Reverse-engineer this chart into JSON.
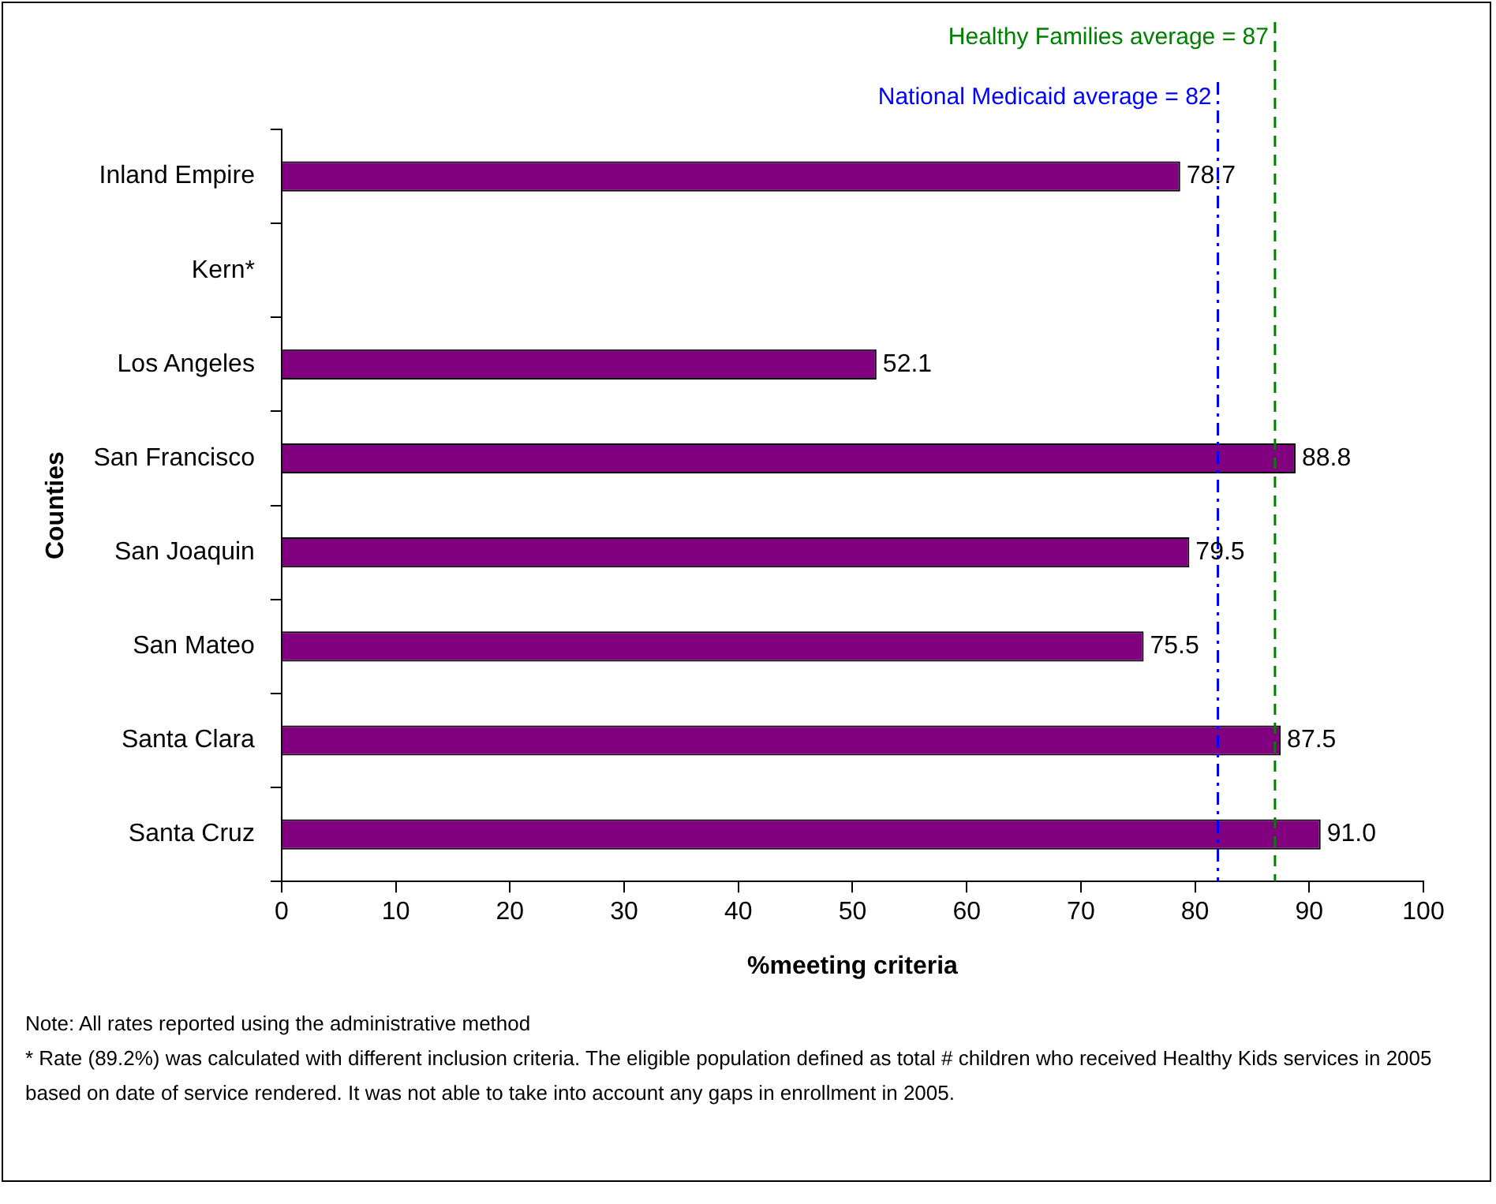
{
  "chart_data": {
    "type": "bar",
    "orientation": "horizontal",
    "xlabel": "%meeting criteria",
    "ylabel": "Counties",
    "categories": [
      "Inland Empire",
      "Kern*",
      "Los Angeles",
      "San Francisco",
      "San Joaquin",
      "San Mateo",
      "Santa Clara",
      "Santa Cruz"
    ],
    "values": [
      78.7,
      null,
      52.1,
      88.8,
      79.5,
      75.5,
      87.5,
      91.0
    ],
    "value_labels": [
      "78.7",
      null,
      "52.1",
      "88.8",
      "79.5",
      "75.5",
      "87.5",
      "91.0"
    ],
    "color": "#800080",
    "xlim": [
      0,
      100
    ],
    "xticks": [
      0,
      10,
      20,
      30,
      40,
      50,
      60,
      70,
      80,
      90,
      100
    ],
    "ref_lines": [
      {
        "axis": "x",
        "value": 82,
        "label": "National Medicaid average = 82",
        "color": "#0000ff",
        "line_style": "dashdot"
      },
      {
        "axis": "x",
        "value": 87,
        "label": "Healthy Families average = 87",
        "color": "#008000",
        "line_style": "dashed"
      }
    ],
    "legend": false,
    "annotations": [
      "Note: All rates reported using the administrative method",
      "* Rate (89.2%) was calculated with different inclusion criteria. The eligible population defined as total # children who received Healthy Kids services in 2005 based on date of service rendered.  It was not able to take into account any gaps in enrollment in 2005."
    ]
  }
}
